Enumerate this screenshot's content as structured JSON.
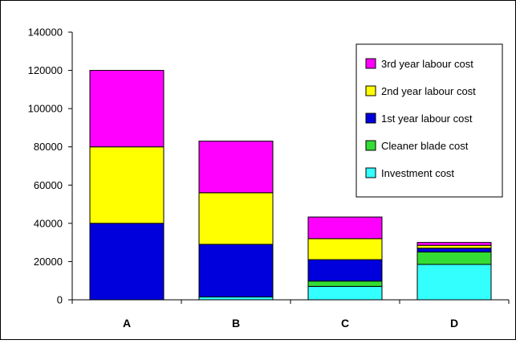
{
  "chart_data": {
    "type": "bar",
    "stacked": true,
    "categories": [
      "A",
      "B",
      "C",
      "D"
    ],
    "series": [
      {
        "name": "Investment cost",
        "color": "#33ffff",
        "values": [
          0,
          1500,
          7000,
          18500
        ]
      },
      {
        "name": "Cleaner blade cost",
        "color": "#33dd33",
        "values": [
          0,
          0,
          2800,
          6500
        ]
      },
      {
        "name": "1st year labour cost",
        "color": "#0000dd",
        "values": [
          40000,
          27500,
          11200,
          2000
        ]
      },
      {
        "name": "2nd year labour cost",
        "color": "#ffff00",
        "values": [
          40000,
          27000,
          11000,
          1500
        ]
      },
      {
        "name": "3rd year labour cost",
        "color": "#ff00ff",
        "values": [
          40000,
          27000,
          11300,
          1500
        ]
      }
    ],
    "ylim": [
      0,
      140000
    ],
    "yticks": [
      "0",
      "20000",
      "40000",
      "60000",
      "80000",
      "100000",
      "120000",
      "140000"
    ],
    "title": "",
    "xlabel": "",
    "ylabel": "",
    "grid": false,
    "legend_position": "top-right",
    "legend_order": [
      "3rd year labour cost",
      "2nd year labour cost",
      "1st year labour cost",
      "Cleaner blade cost",
      "Investment cost"
    ]
  }
}
